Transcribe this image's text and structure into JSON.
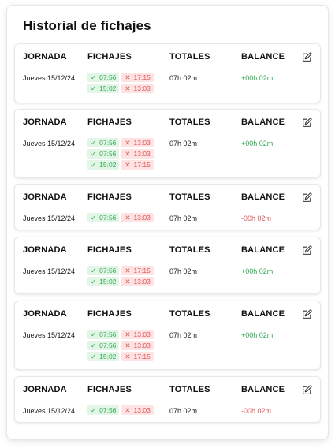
{
  "title": "Historial de fichajes",
  "columns": {
    "jornada": "JORNADA",
    "fichajes": "FICHAJES",
    "totales": "TOTALES",
    "balance": "BALANCE"
  },
  "records": [
    {
      "date": "Jueves 15/12/24",
      "total": "07h 02m",
      "balance": "+00h 02m",
      "balance_type": "positive",
      "marks": [
        {
          "in": "07:56",
          "out": "17:15"
        },
        {
          "in": "15:02",
          "out": "13:03"
        }
      ]
    },
    {
      "date": "Jueves 15/12/24",
      "total": "07h 02m",
      "balance": "+00h 02m",
      "balance_type": "positive",
      "marks": [
        {
          "in": "07:56",
          "out": "13:03"
        },
        {
          "in": "07:56",
          "out": "13:03"
        },
        {
          "in": "15:02",
          "out": "17:15"
        }
      ]
    },
    {
      "date": "Jueves 15/12/24",
      "total": "07h 02m",
      "balance": "-00h 02m",
      "balance_type": "negative",
      "marks": [
        {
          "in": "07:56",
          "out": "13:03"
        }
      ]
    },
    {
      "date": "Jueves 15/12/24",
      "total": "07h 02m",
      "balance": "+00h 02m",
      "balance_type": "positive",
      "marks": [
        {
          "in": "07:56",
          "out": "17:15"
        },
        {
          "in": "15:02",
          "out": "13:03"
        }
      ]
    },
    {
      "date": "Jueves 15/12/24",
      "total": "07h 02m",
      "balance": "+00h 02m",
      "balance_type": "positive",
      "marks": [
        {
          "in": "07:56",
          "out": "13:03"
        },
        {
          "in": "07:56",
          "out": "13:03"
        },
        {
          "in": "15:02",
          "out": "17:15"
        }
      ]
    },
    {
      "date": "Jueves 15/12/24",
      "total": "07h 02m",
      "balance": "-00h 02m",
      "balance_type": "negative",
      "marks": [
        {
          "in": "07:56",
          "out": "13:03"
        }
      ]
    }
  ],
  "icons": {
    "edit": "edit-icon",
    "check": "check-icon",
    "cross": "cross-icon"
  },
  "colors": {
    "positive": "#2fa84f",
    "negative": "#e05555",
    "positive_bg": "#e3f5e7",
    "negative_bg": "#fde3e3"
  }
}
